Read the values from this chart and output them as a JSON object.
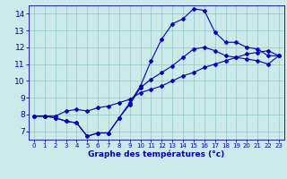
{
  "xlabel": "Graphe des températures (°c)",
  "bg_color": "#cceaea",
  "line_color": "#0000bb",
  "grid_color": "#99cccc",
  "xlim": [
    -0.5,
    23.5
  ],
  "ylim": [
    6.5,
    14.5
  ],
  "xticks": [
    0,
    1,
    2,
    3,
    4,
    5,
    6,
    7,
    8,
    9,
    10,
    11,
    12,
    13,
    14,
    15,
    16,
    17,
    18,
    19,
    20,
    21,
    22,
    23
  ],
  "yticks": [
    7,
    8,
    9,
    10,
    11,
    12,
    13,
    14
  ],
  "line1_x": [
    0,
    1,
    2,
    3,
    4,
    5,
    6,
    7,
    8,
    9,
    10,
    11,
    12,
    13,
    14,
    15,
    16,
    17,
    18,
    19,
    20,
    21,
    22,
    23
  ],
  "line1_y": [
    7.9,
    7.9,
    7.8,
    7.6,
    7.5,
    6.7,
    6.9,
    6.9,
    7.8,
    8.7,
    9.7,
    11.2,
    12.5,
    13.4,
    13.7,
    14.3,
    14.2,
    12.9,
    12.3,
    12.3,
    12.0,
    11.9,
    11.5,
    11.5
  ],
  "line2_x": [
    0,
    1,
    2,
    3,
    4,
    5,
    6,
    7,
    8,
    9,
    10,
    11,
    12,
    13,
    14,
    15,
    16,
    17,
    18,
    19,
    20,
    21,
    22,
    23
  ],
  "line2_y": [
    7.9,
    7.9,
    7.8,
    7.6,
    7.5,
    6.7,
    6.9,
    6.9,
    7.8,
    8.6,
    9.6,
    10.1,
    10.5,
    10.9,
    11.4,
    11.9,
    12.0,
    11.8,
    11.5,
    11.4,
    11.3,
    11.2,
    11.0,
    11.5
  ],
  "line3_x": [
    0,
    1,
    2,
    3,
    4,
    5,
    6,
    7,
    8,
    9,
    10,
    11,
    12,
    13,
    14,
    15,
    16,
    17,
    18,
    19,
    20,
    21,
    22,
    23
  ],
  "line3_y": [
    7.9,
    7.9,
    7.9,
    8.2,
    8.3,
    8.2,
    8.4,
    8.5,
    8.7,
    8.9,
    9.3,
    9.5,
    9.7,
    10.0,
    10.3,
    10.5,
    10.8,
    11.0,
    11.2,
    11.4,
    11.6,
    11.7,
    11.8,
    11.5
  ]
}
